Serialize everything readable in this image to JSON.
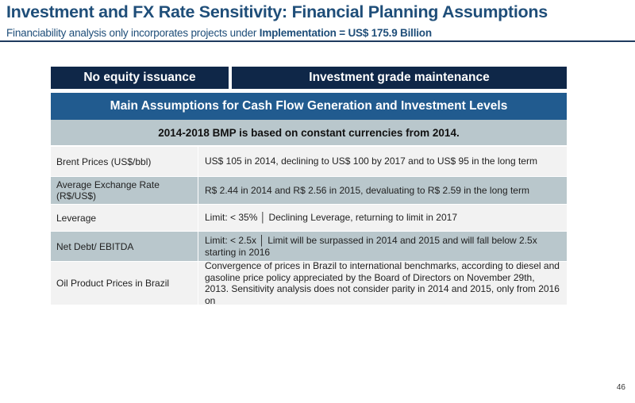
{
  "header": {
    "title": "Investment and FX Rate Sensitivity: Financial Planning Assumptions",
    "subtitle_prefix": "Financiability analysis only incorporates projects under ",
    "subtitle_bold": "Implementation = US$ 175.9 Billion"
  },
  "pills": {
    "left": "No equity issuance",
    "right": "Investment grade maintenance"
  },
  "section": {
    "title": "Main Assumptions for Cash Flow Generation and Investment Levels",
    "subtitle": "2014-2018 BMP is based on constant currencies from 2014."
  },
  "rows": [
    {
      "label": "Brent Prices (US$/bbl)",
      "value": "US$ 105 in 2014, declining to US$ 100 by 2017 and to US$ 95 in the long term"
    },
    {
      "label": "Average Exchange Rate (R$/US$)",
      "value": "R$ 2.44 in 2014 and R$ 2.56 in 2015, devaluating to R$ 2.59 in the long term"
    },
    {
      "label": "Leverage",
      "value": "Limit:  < 35%  │ Declining Leverage, returning to limit in 2017"
    },
    {
      "label": "Net Debt/ EBITDA",
      "value": "Limit: < 2.5x  │ Limit will be surpassed in 2014 and 2015 and will fall below 2.5x starting in 2016"
    },
    {
      "label": "Oil Product Prices in Brazil",
      "value": "Convergence of prices in Brazil to international benchmarks, according to diesel and gasoline price policy appreciated by the Board of Directors on November 29th, 2013. Sensitivity analysis does not consider parity in 2014 and 2015, only from 2016 on"
    }
  ],
  "footer": {
    "page_number": "46"
  }
}
